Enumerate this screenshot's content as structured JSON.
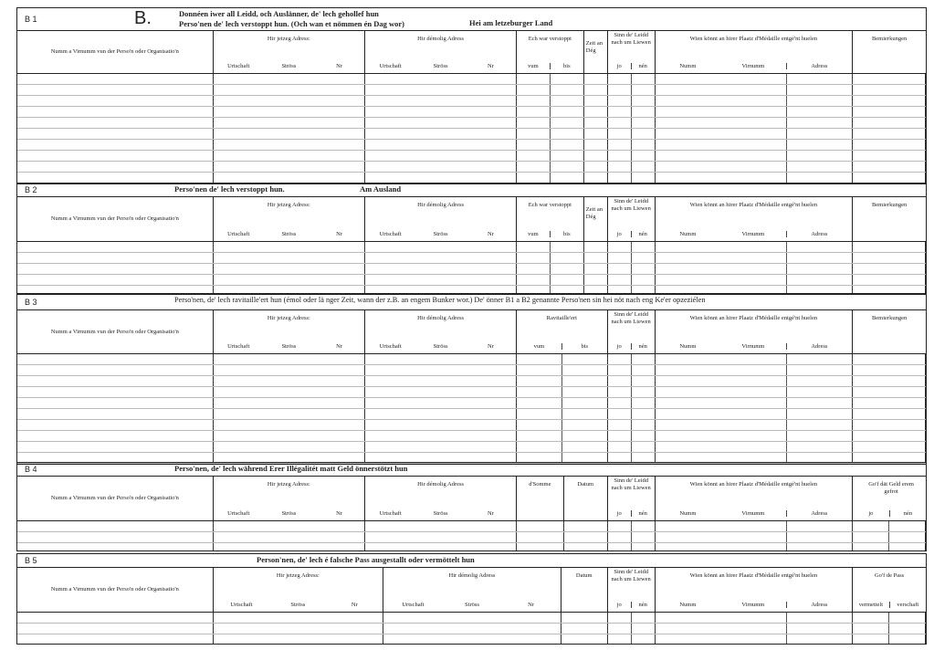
{
  "form_letter": "B.",
  "sections": [
    {
      "code": "B 1",
      "title_lines": [
        "Donnéen iwer all Leidd, och Auslänner, de' lech gehollef hun",
        "Perso'nen de' lech verstoppt hun. (Och wan et nömmen én Dag wor)"
      ],
      "title_extra": "Hei am letzeburger Land",
      "columns": [
        {
          "key": "name",
          "label": "Numm a Virnumm vun der Perso'n oder Organisatio'n",
          "subs": []
        },
        {
          "key": "jetzeg",
          "label": "Hir jetzeg Adress:",
          "subs": [
            "Urtschaft",
            "Ströss",
            "Nr"
          ]
        },
        {
          "key": "demolig",
          "label": "Hir démolig Adress",
          "subs": [
            "Urtschaft",
            "Ströss",
            "Nr"
          ]
        },
        {
          "key": "verstoppt",
          "label": "Ech war verstoppt",
          "subs": [
            "vum",
            "bis"
          ]
        },
        {
          "key": "zeit",
          "label": "Zeit an Dég",
          "subs": []
        },
        {
          "key": "sinn",
          "label": "Sinn de' Leidd nach um Liewen",
          "subs": [
            "jo",
            "nén"
          ]
        },
        {
          "key": "wien",
          "label": "Wien könnt an hirer Plaatz d'Médaille entgé'nt huelen",
          "subs": [
            "Numm",
            "Virnumm",
            "Adress"
          ]
        },
        {
          "key": "bem",
          "label": "Bemierkungen",
          "subs": []
        }
      ]
    },
    {
      "code": "B 2",
      "title_lines": [
        "Perso'nen de' lech verstoppt hun."
      ],
      "title_extra": "Am Ausland",
      "columns": [
        {
          "key": "name",
          "label": "Numm a Virnumm vun der Perso'n oder Organisatio'n",
          "subs": []
        },
        {
          "key": "jetzeg",
          "label": "Hir jetzeg Adress:",
          "subs": [
            "Urtschaft",
            "Ströss",
            "Nr"
          ]
        },
        {
          "key": "demolig",
          "label": "Hir démolig Adress",
          "subs": [
            "Urtschaft",
            "Ströss",
            "Nr"
          ]
        },
        {
          "key": "verstoppt",
          "label": "Ech war verstoppt",
          "subs": [
            "vum",
            "bis"
          ]
        },
        {
          "key": "zeit",
          "label": "Zeit an Dég",
          "subs": []
        },
        {
          "key": "sinn",
          "label": "Sinn de' Leidd nach um Liewen",
          "subs": [
            "jo",
            "nén"
          ]
        },
        {
          "key": "wien",
          "label": "Wien könnt an hirer Plaatz d'Médaille entgé'nt huelen",
          "subs": [
            "Numm",
            "Virnumm",
            "Adress"
          ]
        },
        {
          "key": "bem",
          "label": "Bemierkungen",
          "subs": []
        }
      ]
    },
    {
      "code": "B 3",
      "title_lines": [
        "Perso'nen, de' lech ravitaille'ert hun (émol oder lä nger Zeit, wann der z.B. an engem Bunker wor.)  De' önner B1 a B2 genannte Perso'nen sin hei nöt nach eng Ke'er opzeziélen"
      ],
      "title_extra": "",
      "columns": [
        {
          "key": "name",
          "label": "Numm a Virnumm vun der Perso'n oder Organisatio'n",
          "subs": []
        },
        {
          "key": "jetzeg",
          "label": "Hir jetzeg Adress:",
          "subs": [
            "Urtschaft",
            "Ströss",
            "Nr"
          ]
        },
        {
          "key": "demolig",
          "label": "Hir démolig Adress",
          "subs": [
            "Urtschaft",
            "Ströss",
            "Nr"
          ]
        },
        {
          "key": "ravit",
          "label": "Ravitaille'ert",
          "subs": [
            "vum",
            "bis"
          ]
        },
        {
          "key": "sinn",
          "label": "Sinn de' Leidd nach um Liewen",
          "subs": [
            "jo",
            "nén"
          ]
        },
        {
          "key": "wien",
          "label": "Wien könnt an hirer Plaatz d'Médaille entgé'nt huelen",
          "subs": [
            "Numm",
            "Virnumm",
            "Adress"
          ]
        },
        {
          "key": "bem",
          "label": "Bemierkungen",
          "subs": []
        }
      ]
    },
    {
      "code": "B 4",
      "title_lines": [
        "Perso'nen, de' lech während Erer Illégalitét matt Geld önnerstötzt hun"
      ],
      "title_extra": "",
      "columns": [
        {
          "key": "name",
          "label": "Numm a Virnumm vun der Perso'n oder Organisatio'n",
          "subs": []
        },
        {
          "key": "jetzeg",
          "label": "Hir jetzeg Adress:",
          "subs": [
            "Urtschaft",
            "Ströss",
            "Nr"
          ]
        },
        {
          "key": "demolig",
          "label": "Hir démolig Adress",
          "subs": [
            "Urtschaft",
            "Ströss",
            "Nr"
          ]
        },
        {
          "key": "somme",
          "label": "d'Somme",
          "subs": []
        },
        {
          "key": "datum",
          "label": "Datum",
          "subs": []
        },
        {
          "key": "sinn",
          "label": "Sinn de' Leidd nach um Liewen",
          "subs": [
            "jo",
            "nén"
          ]
        },
        {
          "key": "wien",
          "label": "Wien könnt an hirer Plaatz d'Médaille entgé'nt huelen",
          "subs": [
            "Numm",
            "Virnumm",
            "Adress"
          ]
        },
        {
          "key": "geld",
          "label": "Go'f dät Geld erem gefrot",
          "subs": [
            "jo",
            "nén"
          ]
        }
      ]
    },
    {
      "code": "B 5",
      "title_lines": [
        "Person'nen, de' lech é falsche Pass ausgestallt oder  vermöttelt hun"
      ],
      "title_extra": "",
      "columns": [
        {
          "key": "name",
          "label": "Numm a Virnumm vun der Perso'n oder Organisatio'n",
          "subs": []
        },
        {
          "key": "jetzeg",
          "label": "Hir jetzeg Adress:",
          "subs": [
            "Urtschaft",
            "Ströss",
            "Nr"
          ]
        },
        {
          "key": "demolig",
          "label": "Hir démolig Adress",
          "subs": [
            "Urtschaft",
            "Ströss",
            "Nr"
          ]
        },
        {
          "key": "datum",
          "label": "Datum",
          "subs": []
        },
        {
          "key": "sinn",
          "label": "Sinn de' Leidd nach um Liewen",
          "subs": [
            "jo",
            "nén"
          ]
        },
        {
          "key": "wien",
          "label": "Wien könnt an hirer Plaatz d'Médaille entgé'nt huelen",
          "subs": [
            "Numm",
            "Virnumm",
            "Adress"
          ]
        },
        {
          "key": "pass",
          "label": "Go'f de Pass",
          "subs": [
            "vermettelt",
            "verschaft"
          ]
        }
      ]
    }
  ]
}
